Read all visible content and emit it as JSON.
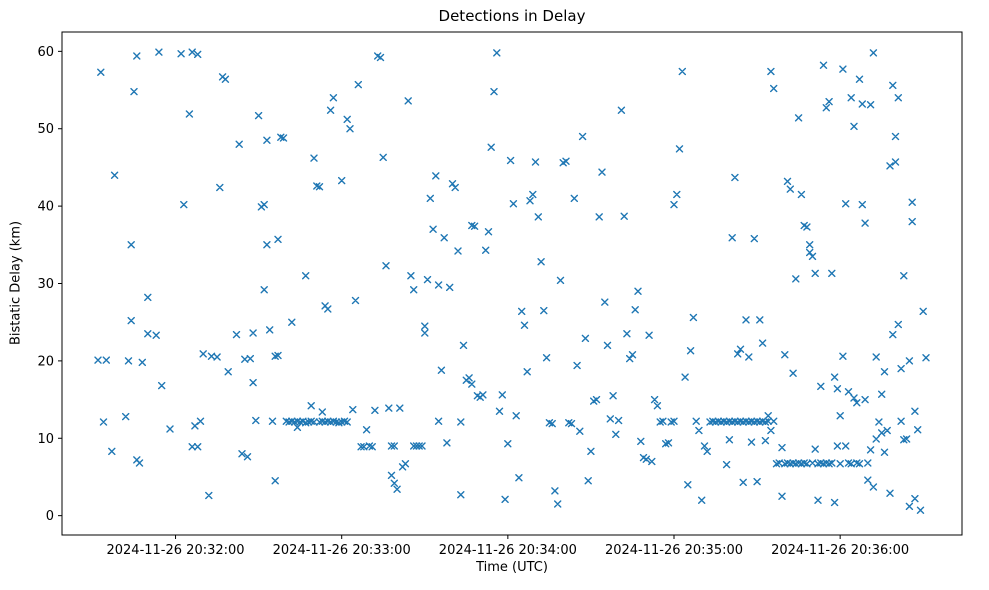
{
  "figure": {
    "title": "Detections in Delay"
  },
  "chart_data": {
    "type": "scatter",
    "title": "Detections in Delay",
    "xlabel": "Time (UTC)",
    "ylabel": "Bistatic Delay (km)",
    "marker": "x",
    "marker_color": "#1f77b4",
    "grid": false,
    "legend": "none",
    "x_encoding": "seconds after 2024-11-26 20:31:00 UTC",
    "xlim": [
      19,
      344
    ],
    "ylim": [
      -2.5,
      62.5
    ],
    "y_ticks": [
      0,
      10,
      20,
      30,
      40,
      50,
      60
    ],
    "x_ticks": [
      {
        "t": 60,
        "label": "2024-11-26 20:32:00"
      },
      {
        "t": 120,
        "label": "2024-11-26 20:33:00"
      },
      {
        "t": 180,
        "label": "2024-11-26 20:34:00"
      },
      {
        "t": 240,
        "label": "2024-11-26 20:35:00"
      },
      {
        "t": 300,
        "label": "2024-11-26 20:36:00"
      }
    ],
    "points": [
      [
        33,
        57.3
      ],
      [
        38,
        44
      ],
      [
        32,
        20.1
      ],
      [
        35,
        20.1
      ],
      [
        34,
        12.1
      ],
      [
        37,
        8.3
      ],
      [
        42,
        12.8
      ],
      [
        43,
        20
      ],
      [
        44,
        35
      ],
      [
        45,
        54.8
      ],
      [
        46,
        59.4
      ],
      [
        44,
        25.2
      ],
      [
        46,
        7.2
      ],
      [
        47,
        6.8
      ],
      [
        48,
        19.8
      ],
      [
        50,
        28.2
      ],
      [
        50,
        23.5
      ],
      [
        53,
        23.3
      ],
      [
        54,
        59.9
      ],
      [
        55,
        16.8
      ],
      [
        58,
        11.2
      ],
      [
        62,
        59.7
      ],
      [
        63,
        40.2
      ],
      [
        65,
        51.9
      ],
      [
        66,
        59.9
      ],
      [
        68,
        59.6
      ],
      [
        66,
        8.9
      ],
      [
        68,
        8.9
      ],
      [
        67,
        11.6
      ],
      [
        69,
        12.2
      ],
      [
        70,
        20.9
      ],
      [
        72,
        2.6
      ],
      [
        73,
        20.6
      ],
      [
        75,
        20.5
      ],
      [
        76,
        42.4
      ],
      [
        77,
        56.7
      ],
      [
        78,
        56.4
      ],
      [
        79,
        18.6
      ],
      [
        82,
        23.4
      ],
      [
        83,
        48
      ],
      [
        85,
        20.2
      ],
      [
        87,
        20.3
      ],
      [
        84,
        8
      ],
      [
        86,
        7.6
      ],
      [
        88,
        17.2
      ],
      [
        88,
        23.6
      ],
      [
        89,
        12.3
      ],
      [
        90,
        51.7
      ],
      [
        91,
        39.9
      ],
      [
        92,
        40.2
      ],
      [
        93,
        48.5
      ],
      [
        92,
        29.2
      ],
      [
        93,
        35
      ],
      [
        94,
        24
      ],
      [
        95,
        12.2
      ],
      [
        96,
        4.5
      ],
      [
        97,
        35.7
      ],
      [
        98,
        48.9
      ],
      [
        99,
        48.8
      ],
      [
        96,
        20.6
      ],
      [
        97,
        20.7
      ],
      [
        100,
        12.2
      ],
      [
        101,
        12.1
      ],
      [
        102,
        12.2
      ],
      [
        102,
        25
      ],
      [
        103,
        12.1
      ],
      [
        104,
        12.2
      ],
      [
        104,
        11.4
      ],
      [
        105,
        12.1
      ],
      [
        106,
        12.2
      ],
      [
        107,
        12
      ],
      [
        107,
        31
      ],
      [
        108,
        12.1
      ],
      [
        109,
        12.2
      ],
      [
        109,
        14.2
      ],
      [
        110,
        12.1
      ],
      [
        110,
        46.2
      ],
      [
        111,
        42.6
      ],
      [
        112,
        42.5
      ],
      [
        112,
        12.1
      ],
      [
        113,
        12.2
      ],
      [
        113,
        13.4
      ],
      [
        114,
        12.1
      ],
      [
        114,
        27.1
      ],
      [
        115,
        26.7
      ],
      [
        115,
        12.2
      ],
      [
        116,
        52.4
      ],
      [
        117,
        54
      ],
      [
        116,
        12.1
      ],
      [
        117,
        12.2
      ],
      [
        118,
        12.1
      ],
      [
        119,
        12
      ],
      [
        120,
        12.1
      ],
      [
        120,
        43.3
      ],
      [
        121,
        12.2
      ],
      [
        122,
        12.1
      ],
      [
        122,
        51.2
      ],
      [
        123,
        50
      ],
      [
        124,
        13.7
      ],
      [
        125,
        27.8
      ],
      [
        126,
        55.7
      ],
      [
        127,
        8.9
      ],
      [
        128,
        8.9
      ],
      [
        129,
        11.1
      ],
      [
        130,
        9
      ],
      [
        131,
        8.9
      ],
      [
        132,
        13.6
      ],
      [
        133,
        59.4
      ],
      [
        134,
        59.2
      ],
      [
        135,
        46.3
      ],
      [
        136,
        32.3
      ],
      [
        137,
        13.9
      ],
      [
        138,
        9
      ],
      [
        139,
        9
      ],
      [
        138,
        5.2
      ],
      [
        139,
        4.2
      ],
      [
        140,
        3.4
      ],
      [
        141,
        13.9
      ],
      [
        142,
        6.3
      ],
      [
        143,
        6.7
      ],
      [
        144,
        53.6
      ],
      [
        145,
        31
      ],
      [
        146,
        29.2
      ],
      [
        146,
        9
      ],
      [
        147,
        9
      ],
      [
        148,
        9
      ],
      [
        149,
        9
      ],
      [
        150,
        24.5
      ],
      [
        150,
        23.6
      ],
      [
        151,
        30.5
      ],
      [
        152,
        41
      ],
      [
        153,
        37
      ],
      [
        154,
        43.9
      ],
      [
        155,
        29.8
      ],
      [
        155,
        12.2
      ],
      [
        156,
        18.8
      ],
      [
        157,
        35.9
      ],
      [
        158,
        9.4
      ],
      [
        159,
        29.5
      ],
      [
        160,
        42.9
      ],
      [
        161,
        42.4
      ],
      [
        162,
        34.2
      ],
      [
        163,
        12.1
      ],
      [
        163,
        2.7
      ],
      [
        164,
        22
      ],
      [
        165,
        17.5
      ],
      [
        166,
        17.8
      ],
      [
        167,
        17
      ],
      [
        167,
        37.5
      ],
      [
        168,
        37.4
      ],
      [
        169,
        15.5
      ],
      [
        170,
        15.3
      ],
      [
        171,
        15.6
      ],
      [
        172,
        34.3
      ],
      [
        173,
        36.7
      ],
      [
        174,
        47.6
      ],
      [
        175,
        54.8
      ],
      [
        176,
        59.8
      ],
      [
        177,
        13.5
      ],
      [
        178,
        15.6
      ],
      [
        179,
        2.1
      ],
      [
        180,
        9.3
      ],
      [
        181,
        45.9
      ],
      [
        182,
        40.3
      ],
      [
        183,
        12.9
      ],
      [
        184,
        4.9
      ],
      [
        185,
        26.4
      ],
      [
        186,
        24.6
      ],
      [
        187,
        18.6
      ],
      [
        188,
        40.7
      ],
      [
        189,
        41.5
      ],
      [
        190,
        45.7
      ],
      [
        191,
        38.6
      ],
      [
        192,
        32.8
      ],
      [
        193,
        26.5
      ],
      [
        194,
        20.4
      ],
      [
        195,
        12
      ],
      [
        196,
        11.9
      ],
      [
        197,
        3.2
      ],
      [
        198,
        1.5
      ],
      [
        199,
        30.4
      ],
      [
        200,
        45.6
      ],
      [
        201,
        45.8
      ],
      [
        202,
        12
      ],
      [
        203,
        11.9
      ],
      [
        204,
        41
      ],
      [
        205,
        19.4
      ],
      [
        206,
        10.9
      ],
      [
        207,
        49
      ],
      [
        208,
        22.9
      ],
      [
        209,
        4.5
      ],
      [
        210,
        8.3
      ],
      [
        211,
        14.8
      ],
      [
        212,
        15
      ],
      [
        213,
        38.6
      ],
      [
        214,
        44.4
      ],
      [
        215,
        27.6
      ],
      [
        216,
        22
      ],
      [
        217,
        12.5
      ],
      [
        218,
        15.5
      ],
      [
        219,
        10.5
      ],
      [
        220,
        12.3
      ],
      [
        221,
        52.4
      ],
      [
        222,
        38.7
      ],
      [
        223,
        23.5
      ],
      [
        224,
        20.3
      ],
      [
        225,
        20.8
      ],
      [
        226,
        26.6
      ],
      [
        227,
        29
      ],
      [
        228,
        9.6
      ],
      [
        229,
        7.5
      ],
      [
        230,
        7.3
      ],
      [
        231,
        23.3
      ],
      [
        232,
        7
      ],
      [
        233,
        15
      ],
      [
        234,
        14.2
      ],
      [
        235,
        12.1
      ],
      [
        236,
        12.2
      ],
      [
        237,
        9.3
      ],
      [
        238,
        9.4
      ],
      [
        239,
        12.1
      ],
      [
        240,
        12.2
      ],
      [
        240,
        40.2
      ],
      [
        241,
        41.5
      ],
      [
        242,
        47.4
      ],
      [
        243,
        57.4
      ],
      [
        244,
        17.9
      ],
      [
        245,
        4
      ],
      [
        246,
        21.3
      ],
      [
        247,
        25.6
      ],
      [
        248,
        12.2
      ],
      [
        249,
        11
      ],
      [
        250,
        2
      ],
      [
        251,
        9
      ],
      [
        252,
        8.3
      ],
      [
        253,
        12.1
      ],
      [
        254,
        12.2
      ],
      [
        255,
        12.1
      ],
      [
        256,
        12.2
      ],
      [
        257,
        12.1
      ],
      [
        258,
        12.2
      ],
      [
        259,
        12.1
      ],
      [
        259,
        6.6
      ],
      [
        260,
        9.8
      ],
      [
        260,
        12.2
      ],
      [
        261,
        12.1
      ],
      [
        261,
        35.9
      ],
      [
        262,
        43.7
      ],
      [
        262,
        12.2
      ],
      [
        263,
        12.1
      ],
      [
        263,
        20.9
      ],
      [
        264,
        21.5
      ],
      [
        264,
        12.2
      ],
      [
        265,
        12.1
      ],
      [
        265,
        4.3
      ],
      [
        266,
        12.2
      ],
      [
        266,
        25.3
      ],
      [
        267,
        12.1
      ],
      [
        267,
        20.5
      ],
      [
        268,
        12.2
      ],
      [
        268,
        9.5
      ],
      [
        269,
        12.1
      ],
      [
        269,
        35.8
      ],
      [
        270,
        12.2
      ],
      [
        270,
        4.4
      ],
      [
        271,
        12.1
      ],
      [
        271,
        25.3
      ],
      [
        272,
        12.2
      ],
      [
        272,
        22.3
      ],
      [
        273,
        12.1
      ],
      [
        273,
        9.7
      ],
      [
        274,
        12.2
      ],
      [
        274,
        12.9
      ],
      [
        275,
        11
      ],
      [
        275,
        57.4
      ],
      [
        276,
        55.2
      ],
      [
        276,
        12.2
      ],
      [
        277,
        6.7
      ],
      [
        278,
        6.8
      ],
      [
        279,
        8.8
      ],
      [
        279,
        2.5
      ],
      [
        280,
        6.7
      ],
      [
        280,
        20.8
      ],
      [
        281,
        6.8
      ],
      [
        281,
        43.2
      ],
      [
        282,
        42.2
      ],
      [
        282,
        6.7
      ],
      [
        283,
        6.8
      ],
      [
        283,
        18.4
      ],
      [
        284,
        30.6
      ],
      [
        284,
        6.7
      ],
      [
        285,
        6.8
      ],
      [
        285,
        51.4
      ],
      [
        286,
        41.5
      ],
      [
        286,
        6.7
      ],
      [
        287,
        6.8
      ],
      [
        287,
        37.5
      ],
      [
        288,
        37.3
      ],
      [
        288,
        6.7
      ],
      [
        289,
        35
      ],
      [
        289,
        34
      ],
      [
        290,
        33.5
      ],
      [
        290,
        6.8
      ],
      [
        291,
        31.3
      ],
      [
        291,
        8.6
      ],
      [
        292,
        6.7
      ],
      [
        292,
        2
      ],
      [
        293,
        6.8
      ],
      [
        293,
        16.7
      ],
      [
        294,
        6.7
      ],
      [
        294,
        58.2
      ],
      [
        295,
        6.8
      ],
      [
        295,
        52.7
      ],
      [
        296,
        53.5
      ],
      [
        296,
        6.7
      ],
      [
        297,
        31.3
      ],
      [
        297,
        6.8
      ],
      [
        298,
        17.9
      ],
      [
        298,
        1.7
      ],
      [
        299,
        16.4
      ],
      [
        299,
        9
      ],
      [
        300,
        12.9
      ],
      [
        300,
        6.7
      ],
      [
        301,
        57.7
      ],
      [
        301,
        20.6
      ],
      [
        302,
        40.3
      ],
      [
        302,
        9
      ],
      [
        303,
        16
      ],
      [
        303,
        6.8
      ],
      [
        304,
        54
      ],
      [
        304,
        6.7
      ],
      [
        305,
        50.3
      ],
      [
        305,
        15.2
      ],
      [
        306,
        6.8
      ],
      [
        306,
        14.6
      ],
      [
        307,
        56.4
      ],
      [
        307,
        6.7
      ],
      [
        308,
        53.2
      ],
      [
        308,
        40.2
      ],
      [
        309,
        37.8
      ],
      [
        309,
        15
      ],
      [
        310,
        6.8
      ],
      [
        310,
        4.6
      ],
      [
        311,
        53.1
      ],
      [
        311,
        8.5
      ],
      [
        312,
        59.8
      ],
      [
        312,
        3.7
      ],
      [
        313,
        20.5
      ],
      [
        313,
        9.9
      ],
      [
        314,
        12.1
      ],
      [
        315,
        15.7
      ],
      [
        315,
        10.7
      ],
      [
        316,
        18.6
      ],
      [
        316,
        8.2
      ],
      [
        317,
        11
      ],
      [
        318,
        45.2
      ],
      [
        318,
        2.9
      ],
      [
        319,
        55.6
      ],
      [
        319,
        23.4
      ],
      [
        320,
        45.7
      ],
      [
        320,
        49
      ],
      [
        321,
        54
      ],
      [
        321,
        24.7
      ],
      [
        322,
        19
      ],
      [
        322,
        12.2
      ],
      [
        323,
        31
      ],
      [
        323,
        9.8
      ],
      [
        324,
        9.9
      ],
      [
        325,
        20
      ],
      [
        325,
        1.2
      ],
      [
        326,
        38
      ],
      [
        326,
        40.5
      ],
      [
        327,
        2.2
      ],
      [
        327,
        13.5
      ],
      [
        328,
        11.1
      ],
      [
        329,
        0.7
      ],
      [
        330,
        26.4
      ],
      [
        331,
        20.4
      ]
    ]
  }
}
